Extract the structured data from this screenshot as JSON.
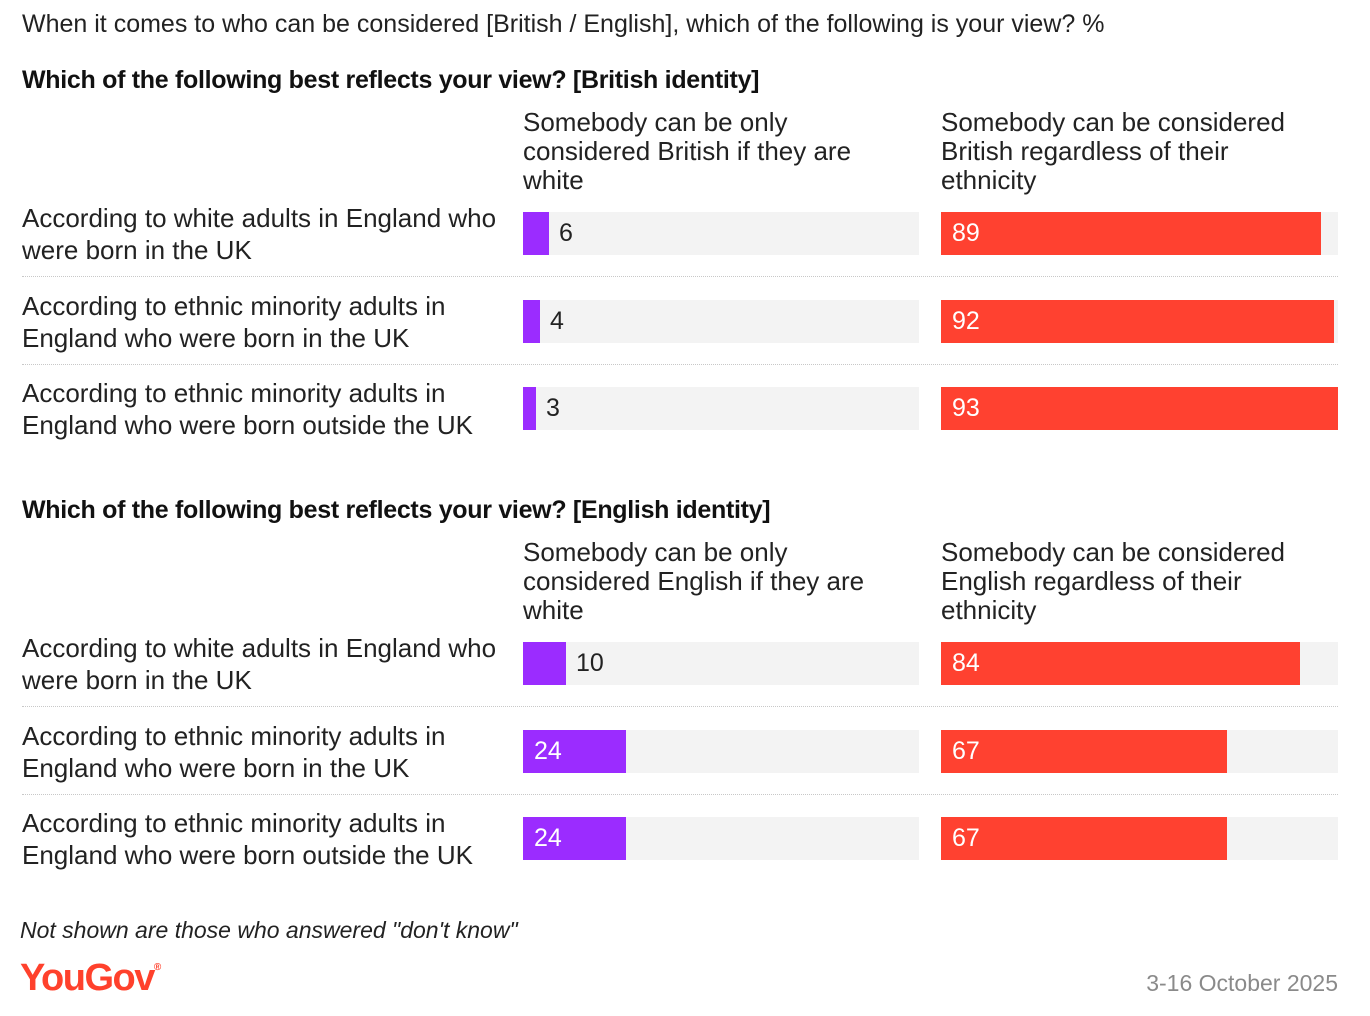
{
  "title": "When it comes to who can be considered [British / English], which of the following is your view? %",
  "footnote": "Not shown are those who answered \"don't know\"",
  "brand": "YouGov",
  "date": "3-16 October 2025",
  "colors": {
    "only_white": "#9b2cff",
    "regardless": "#ff4130",
    "track": "#f3f3f3"
  },
  "chart_data": [
    {
      "type": "bar",
      "title": "Which of the following best reflects your view? [British identity]",
      "categories": [
        "According to white adults in England who were born in the UK",
        "According to ethnic minority adults in England who were born in the UK",
        "According to ethnic minority adults in England who were born outside the UK"
      ],
      "series": [
        {
          "name": "Somebody can be only considered British if they are white",
          "values": [
            6,
            4,
            3
          ]
        },
        {
          "name": "Somebody can be considered British regardless of their ethnicity",
          "values": [
            89,
            92,
            93
          ]
        }
      ],
      "ylim": [
        0,
        100
      ]
    },
    {
      "type": "bar",
      "title": "Which of the following best reflects your view? [English identity]",
      "categories": [
        "According to white adults in England who were born in the UK",
        "According to ethnic minority adults in England who were born in the UK",
        "According to ethnic minority adults in England who were born outside the UK"
      ],
      "series": [
        {
          "name": "Somebody can be only considered English if they are white",
          "values": [
            10,
            24,
            24
          ]
        },
        {
          "name": "Somebody can be considered English regardless of their ethnicity",
          "values": [
            84,
            67,
            67
          ]
        }
      ],
      "ylim": [
        0,
        100
      ]
    }
  ]
}
